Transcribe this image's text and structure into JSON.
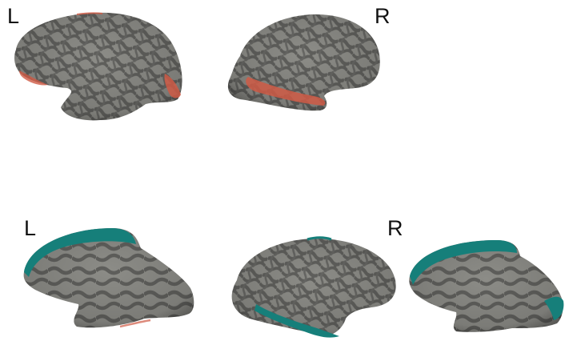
{
  "labels": {
    "top_left": "L",
    "top_right": "R",
    "bottom_left": "L",
    "bottom_right": "R"
  },
  "colors": {
    "cortex_dark": "#5f5f5c",
    "cortex_light": "#8c8c87",
    "positive_highlight": "#cf5a45",
    "negative_highlight": "#167f7a"
  }
}
